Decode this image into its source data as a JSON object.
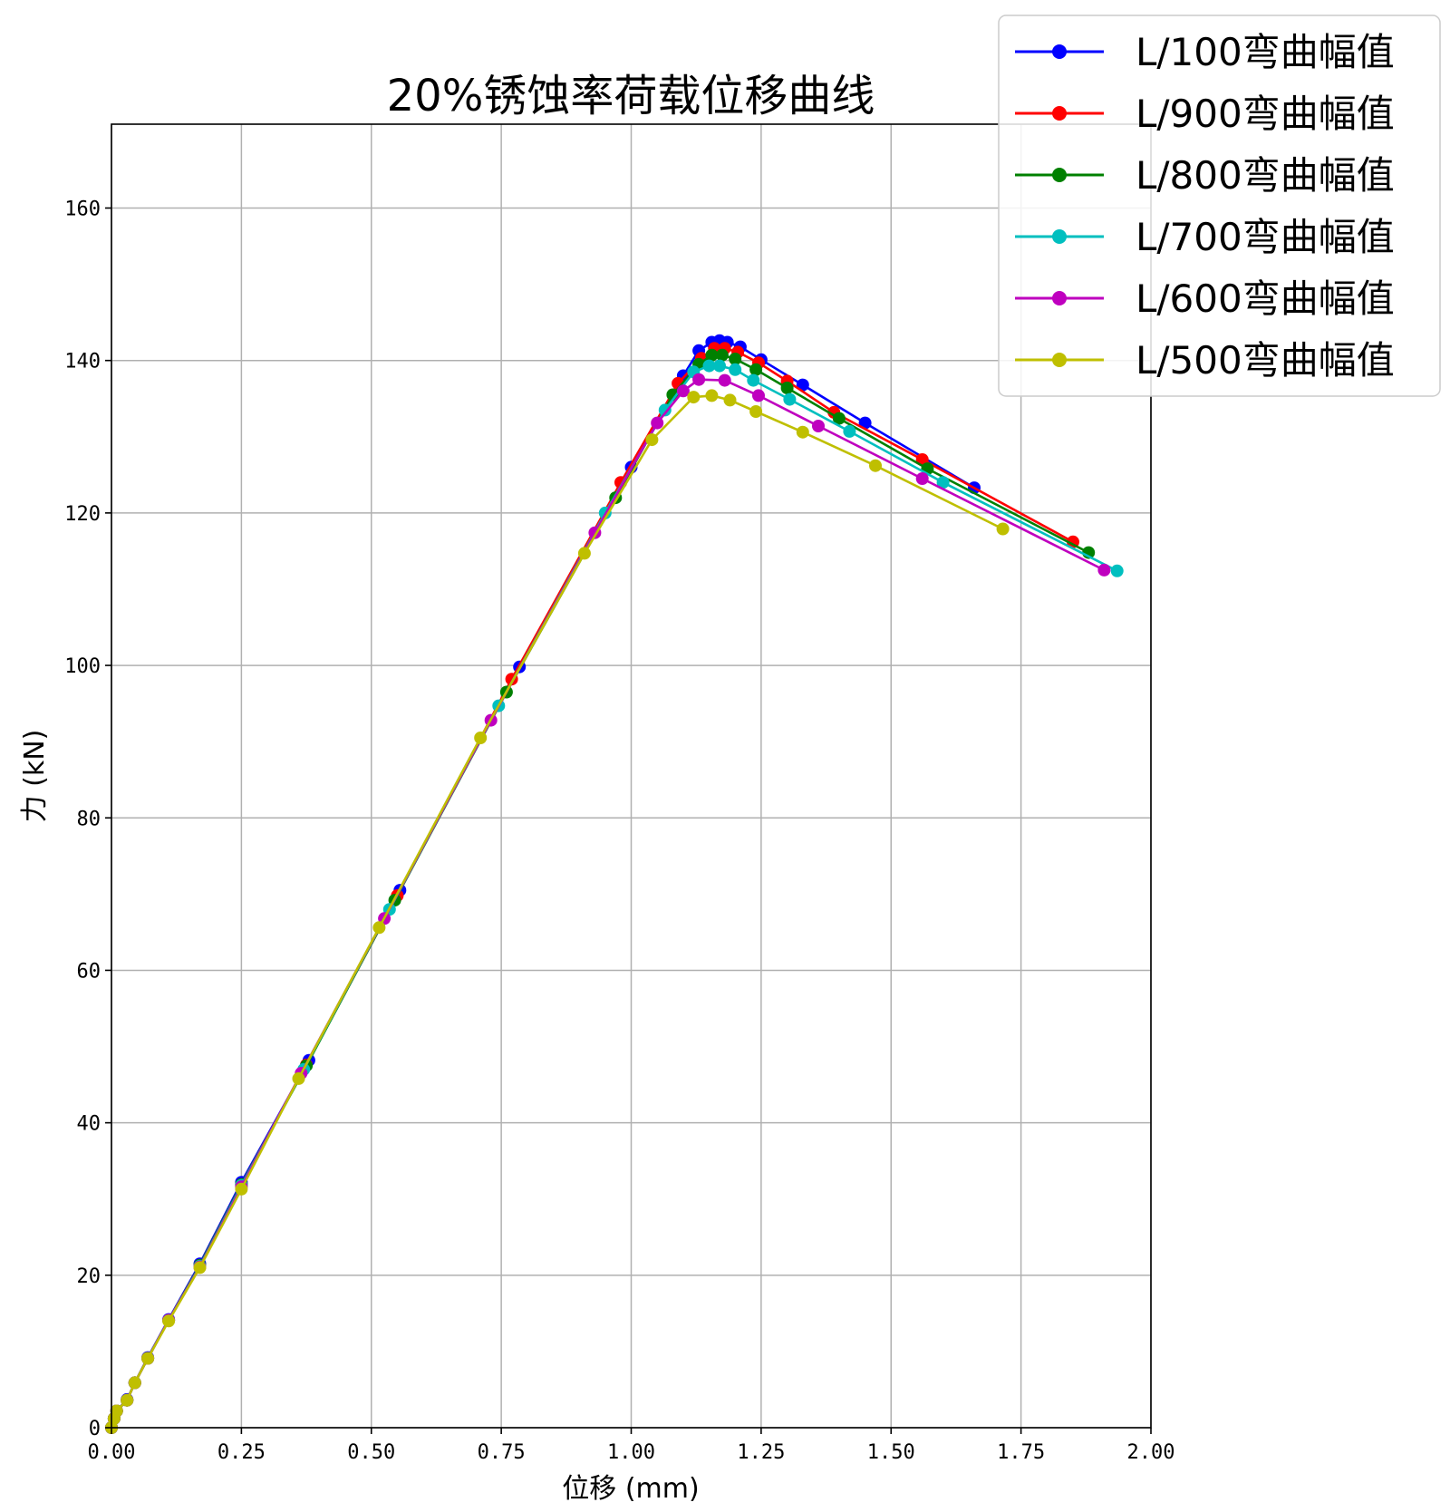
{
  "chart_data": {
    "type": "line",
    "title": "20%锈蚀率荷载位移曲线",
    "xlabel": "位移 (mm)",
    "ylabel": "力 (kN)",
    "xlim": [
      0,
      2.0
    ],
    "ylim": [
      0,
      171
    ],
    "xticks": [
      0.0,
      0.25,
      0.5,
      0.75,
      1.0,
      1.25,
      1.5,
      1.75,
      2.0
    ],
    "xtick_labels": [
      "0.00",
      "0.25",
      "0.50",
      "0.75",
      "1.00",
      "1.25",
      "1.50",
      "1.75",
      "2.00"
    ],
    "yticks": [
      0,
      20,
      40,
      60,
      80,
      100,
      120,
      140,
      160
    ],
    "ytick_labels": [
      "0",
      "20",
      "40",
      "60",
      "80",
      "100",
      "120",
      "140",
      "160"
    ],
    "grid": true,
    "legend_position": "top-right",
    "series": [
      {
        "name": "L/100弯曲幅值",
        "color": "#0000ff",
        "x": [
          0.0,
          0.005,
          0.01,
          0.03,
          0.045,
          0.07,
          0.11,
          0.17,
          0.25,
          0.38,
          0.555,
          0.785,
          1.0,
          1.1,
          1.13,
          1.155,
          1.17,
          1.185,
          1.21,
          1.25,
          1.33,
          1.45,
          1.66
        ],
        "y": [
          0.0,
          1.2,
          2.2,
          3.7,
          5.9,
          9.2,
          14.2,
          21.5,
          32.2,
          48.2,
          70.5,
          99.8,
          126.0,
          138.0,
          141.3,
          142.4,
          142.6,
          142.4,
          141.8,
          140.1,
          136.8,
          131.8,
          123.3
        ]
      },
      {
        "name": "L/900弯曲幅值",
        "color": "#ff0000",
        "x": [
          0.0,
          0.005,
          0.01,
          0.03,
          0.045,
          0.07,
          0.11,
          0.17,
          0.25,
          0.375,
          0.55,
          0.77,
          0.98,
          1.09,
          1.135,
          1.16,
          1.18,
          1.205,
          1.245,
          1.3,
          1.39,
          1.56,
          1.85
        ],
        "y": [
          0.0,
          1.2,
          2.2,
          3.6,
          5.9,
          9.1,
          14.1,
          21.3,
          31.9,
          47.6,
          69.8,
          98.2,
          124.0,
          137.0,
          140.3,
          141.6,
          141.6,
          141.1,
          139.7,
          137.3,
          133.2,
          127.0,
          116.2
        ]
      },
      {
        "name": "L/800弯曲幅值",
        "color": "#008000",
        "x": [
          0.0,
          0.005,
          0.01,
          0.03,
          0.045,
          0.07,
          0.11,
          0.17,
          0.25,
          0.375,
          0.545,
          0.76,
          0.97,
          1.08,
          1.13,
          1.155,
          1.175,
          1.2,
          1.24,
          1.3,
          1.4,
          1.57,
          1.88
        ],
        "y": [
          0.0,
          1.2,
          2.2,
          3.6,
          5.9,
          9.1,
          14.1,
          21.3,
          31.9,
          47.5,
          69.2,
          96.5,
          122.0,
          135.5,
          139.5,
          140.7,
          140.7,
          140.2,
          138.8,
          136.4,
          132.4,
          125.8,
          114.8
        ]
      },
      {
        "name": "L/700弯曲幅值",
        "color": "#00bfbf",
        "x": [
          0.0,
          0.005,
          0.01,
          0.03,
          0.045,
          0.07,
          0.11,
          0.17,
          0.25,
          0.37,
          0.535,
          0.745,
          0.95,
          1.065,
          1.12,
          1.15,
          1.17,
          1.2,
          1.235,
          1.305,
          1.42,
          1.6,
          1.935
        ],
        "y": [
          0.0,
          1.2,
          2.2,
          3.6,
          5.9,
          9.1,
          14.1,
          21.2,
          31.8,
          47.0,
          68.0,
          94.7,
          120.0,
          133.5,
          138.5,
          139.3,
          139.3,
          138.8,
          137.4,
          134.9,
          130.7,
          124.0,
          112.4
        ]
      },
      {
        "name": "L/600弯曲幅值",
        "color": "#bf00bf",
        "x": [
          0.0,
          0.005,
          0.01,
          0.03,
          0.045,
          0.07,
          0.11,
          0.17,
          0.25,
          0.365,
          0.525,
          0.73,
          0.93,
          1.05,
          1.1,
          1.13,
          1.18,
          1.245,
          1.36,
          1.56,
          1.91
        ],
        "y": [
          0.0,
          1.2,
          2.2,
          3.6,
          5.9,
          9.1,
          14.1,
          21.1,
          31.6,
          46.5,
          66.8,
          92.8,
          117.4,
          131.8,
          136.0,
          137.5,
          137.4,
          135.4,
          131.4,
          124.5,
          112.5
        ]
      },
      {
        "name": "L/500弯曲幅值",
        "color": "#bfbf00",
        "x": [
          0.0,
          0.005,
          0.01,
          0.03,
          0.045,
          0.07,
          0.11,
          0.17,
          0.25,
          0.36,
          0.515,
          0.71,
          0.91,
          1.04,
          1.12,
          1.155,
          1.19,
          1.24,
          1.33,
          1.47,
          1.715
        ],
        "y": [
          0.0,
          1.2,
          2.2,
          3.6,
          5.9,
          9.1,
          14.0,
          21.0,
          31.3,
          45.8,
          65.6,
          90.5,
          114.7,
          129.6,
          135.2,
          135.4,
          134.8,
          133.3,
          130.6,
          126.2,
          117.9
        ]
      }
    ]
  }
}
